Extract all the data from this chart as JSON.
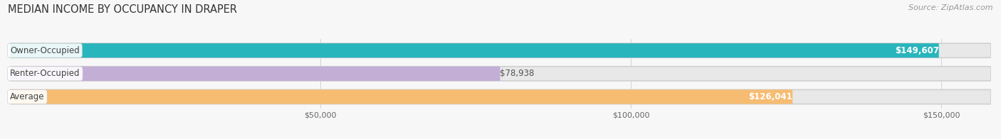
{
  "title": "MEDIAN INCOME BY OCCUPANCY IN DRAPER",
  "source": "Source: ZipAtlas.com",
  "categories": [
    "Owner-Occupied",
    "Renter-Occupied",
    "Average"
  ],
  "values": [
    149607,
    78938,
    126041
  ],
  "bar_colors": [
    "#29b5bc",
    "#c3aed6",
    "#f5bc72"
  ],
  "bar_bg_color": "#e8e8e8",
  "value_labels": [
    "$149,607",
    "$78,938",
    "$126,041"
  ],
  "label_inside": [
    true,
    false,
    true
  ],
  "xmax": 158000,
  "xticks": [
    50000,
    100000,
    150000
  ],
  "xtick_labels": [
    "$50,000",
    "$100,000",
    "$150,000"
  ],
  "title_fontsize": 10.5,
  "source_fontsize": 8,
  "bar_label_fontsize": 8.5,
  "cat_label_fontsize": 8.5,
  "bar_height": 0.62,
  "background_color": "#f7f7f7",
  "bar_spacing": 1.0
}
